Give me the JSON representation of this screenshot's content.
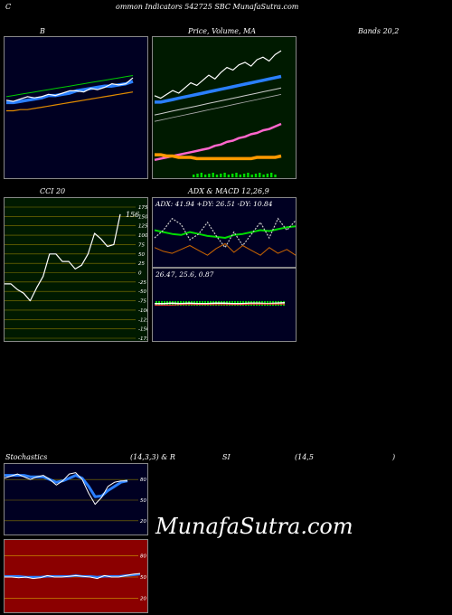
{
  "header": {
    "title_left": "C",
    "title_main": "ommon  Indicators 542725 SBC MunafaSutra.com"
  },
  "labels": {
    "bollinger": "B",
    "price_ma": "Price,  Volume,  MA",
    "bands": "Bands 20,2",
    "cci": "CCI 20",
    "adx_macd": "ADX  & MACD 12,26,9",
    "adx_values": "ADX: 41.94  +DY: 26.51 -DY: 10.84",
    "macd_values": "26.47,  25.6,  0.87",
    "stoch_left": "Stochastics",
    "stoch_params": "(14,3,3) & R",
    "rsi_si": "SI",
    "rsi_params": "(14,5",
    "rsi_close": ")"
  },
  "watermark": "MunafaSutra.com",
  "colors": {
    "bollinger_bg": "#000022",
    "price_bg": "#001a00",
    "cci_bg": "#001a00",
    "adx_bg": "#000022",
    "stoch_bg": "#000022",
    "rsi_bg": "#8b0000"
  },
  "chart_data": [
    {
      "type": "line",
      "name": "bollinger",
      "ylim": [
        0,
        100
      ],
      "series": [
        {
          "values": [
            57,
            58,
            59,
            60,
            61,
            62,
            63,
            64,
            65,
            66,
            67,
            68,
            69,
            70,
            71,
            72,
            73,
            74,
            75
          ]
        },
        {
          "values": [
            52,
            52,
            53,
            54,
            55,
            56,
            58,
            58,
            59,
            60,
            62,
            63,
            64,
            65,
            66,
            66,
            67,
            68,
            70
          ]
        },
        {
          "values": [
            45,
            45,
            46,
            46,
            47,
            48,
            49,
            50,
            51,
            52,
            53,
            54,
            55,
            56,
            57,
            58,
            59,
            60,
            61
          ]
        },
        {
          "values": [
            54,
            53,
            55,
            57,
            56,
            57,
            59,
            58,
            60,
            62,
            62,
            61,
            64,
            63,
            65,
            68,
            67,
            68,
            73
          ]
        }
      ]
    },
    {
      "type": "line",
      "name": "price_ma",
      "ylim": [
        0,
        100
      ],
      "series": [
        {
          "values": [
            60,
            58,
            61,
            64,
            62,
            66,
            70,
            68,
            72,
            76,
            73,
            78,
            82,
            80,
            84,
            86,
            83,
            88,
            90,
            87,
            92,
            95
          ]
        },
        {
          "values": [
            55,
            55,
            56,
            57,
            58,
            59,
            60,
            61,
            62,
            63,
            64,
            65,
            66,
            67,
            68,
            69,
            70,
            71,
            72,
            73,
            74,
            75
          ]
        },
        {
          "values": [
            45,
            46,
            47,
            48,
            49,
            50,
            51,
            52,
            53,
            54,
            55,
            56,
            57,
            58,
            59,
            60,
            61,
            62,
            63,
            64,
            65,
            66
          ]
        },
        {
          "values": [
            40,
            41,
            42,
            43,
            44,
            45,
            46,
            47,
            48,
            49,
            50,
            51,
            52,
            53,
            54,
            55,
            56,
            57,
            58,
            59,
            60,
            61
          ]
        },
        {
          "values": [
            10,
            11,
            12,
            13,
            14,
            15,
            16,
            17,
            18,
            19,
            21,
            22,
            24,
            25,
            27,
            28,
            30,
            31,
            33,
            34,
            36,
            38
          ]
        },
        {
          "values": [
            14,
            14,
            13,
            13,
            12,
            12,
            12,
            11,
            11,
            11,
            11,
            11,
            11,
            11,
            11,
            11,
            11,
            12,
            12,
            12,
            12,
            13
          ]
        }
      ]
    },
    {
      "type": "line",
      "name": "cci",
      "ylim": [
        -175,
        175
      ],
      "tick_labels": [
        "175",
        "150",
        "125",
        "100",
        "75",
        "50",
        "25",
        "0",
        "-25",
        "-50",
        "-75",
        "-100",
        "-125",
        "-150",
        "-175"
      ],
      "ticks": [
        175,
        150,
        125,
        100,
        75,
        50,
        25,
        0,
        -25,
        -50,
        -75,
        -100,
        -125,
        -150,
        -175
      ],
      "values": [
        -30,
        -30,
        -45,
        -55,
        -75,
        -40,
        -10,
        50,
        50,
        30,
        30,
        10,
        20,
        50,
        105,
        90,
        70,
        75,
        156
      ],
      "last_label": "156"
    },
    {
      "type": "line",
      "name": "adx",
      "ylim": [
        0,
        60
      ],
      "series": [
        {
          "values": [
            38,
            36,
            34,
            33,
            36,
            34,
            32,
            31,
            30,
            33,
            34,
            36,
            38,
            37,
            39,
            41,
            42
          ]
        },
        {
          "values": [
            30,
            38,
            50,
            44,
            28,
            34,
            46,
            32,
            20,
            36,
            22,
            34,
            46,
            30,
            50,
            38,
            48
          ]
        },
        {
          "values": [
            20,
            16,
            14,
            18,
            22,
            17,
            12,
            19,
            24,
            15,
            22,
            17,
            12,
            20,
            14,
            18,
            12
          ]
        }
      ]
    },
    {
      "type": "line",
      "name": "macd",
      "ylim": [
        0,
        100
      ],
      "series": [
        {
          "values": [
            60,
            60,
            61,
            60,
            61,
            60,
            60,
            61,
            61,
            60,
            60,
            61,
            61,
            60,
            61,
            62
          ]
        },
        {
          "values": [
            57,
            57,
            57,
            58,
            58,
            58,
            58,
            58,
            58,
            58,
            58,
            59,
            59,
            59,
            59,
            59
          ]
        }
      ]
    },
    {
      "type": "line",
      "name": "stochastics",
      "ylim": [
        0,
        100
      ],
      "tick_labels": [
        "80",
        "50",
        "20"
      ],
      "ticks": [
        80,
        50,
        20
      ],
      "series": [
        {
          "values": [
            82,
            85,
            88,
            84,
            80,
            84,
            86,
            80,
            72,
            78,
            88,
            90,
            80,
            60,
            44,
            54,
            70,
            76,
            78,
            78
          ]
        },
        {
          "values": [
            86,
            86,
            86,
            86,
            84,
            84,
            84,
            80,
            76,
            78,
            82,
            86,
            82,
            70,
            55,
            56,
            64,
            70,
            76,
            78
          ]
        }
      ]
    },
    {
      "type": "line",
      "name": "rsi",
      "ylim": [
        0,
        100
      ],
      "tick_labels": [
        "80",
        "50",
        "20"
      ],
      "ticks": [
        80,
        50,
        20
      ],
      "series": [
        {
          "values": [
            50,
            50,
            49,
            50,
            48,
            49,
            52,
            50,
            50,
            51,
            52,
            51,
            50,
            48,
            52,
            50,
            50,
            52,
            54,
            55
          ]
        },
        {
          "values": [
            51,
            51,
            51,
            50,
            50,
            50,
            51,
            51,
            51,
            51,
            52,
            51,
            51,
            50,
            51,
            51,
            51,
            52,
            53,
            54
          ]
        }
      ]
    }
  ]
}
